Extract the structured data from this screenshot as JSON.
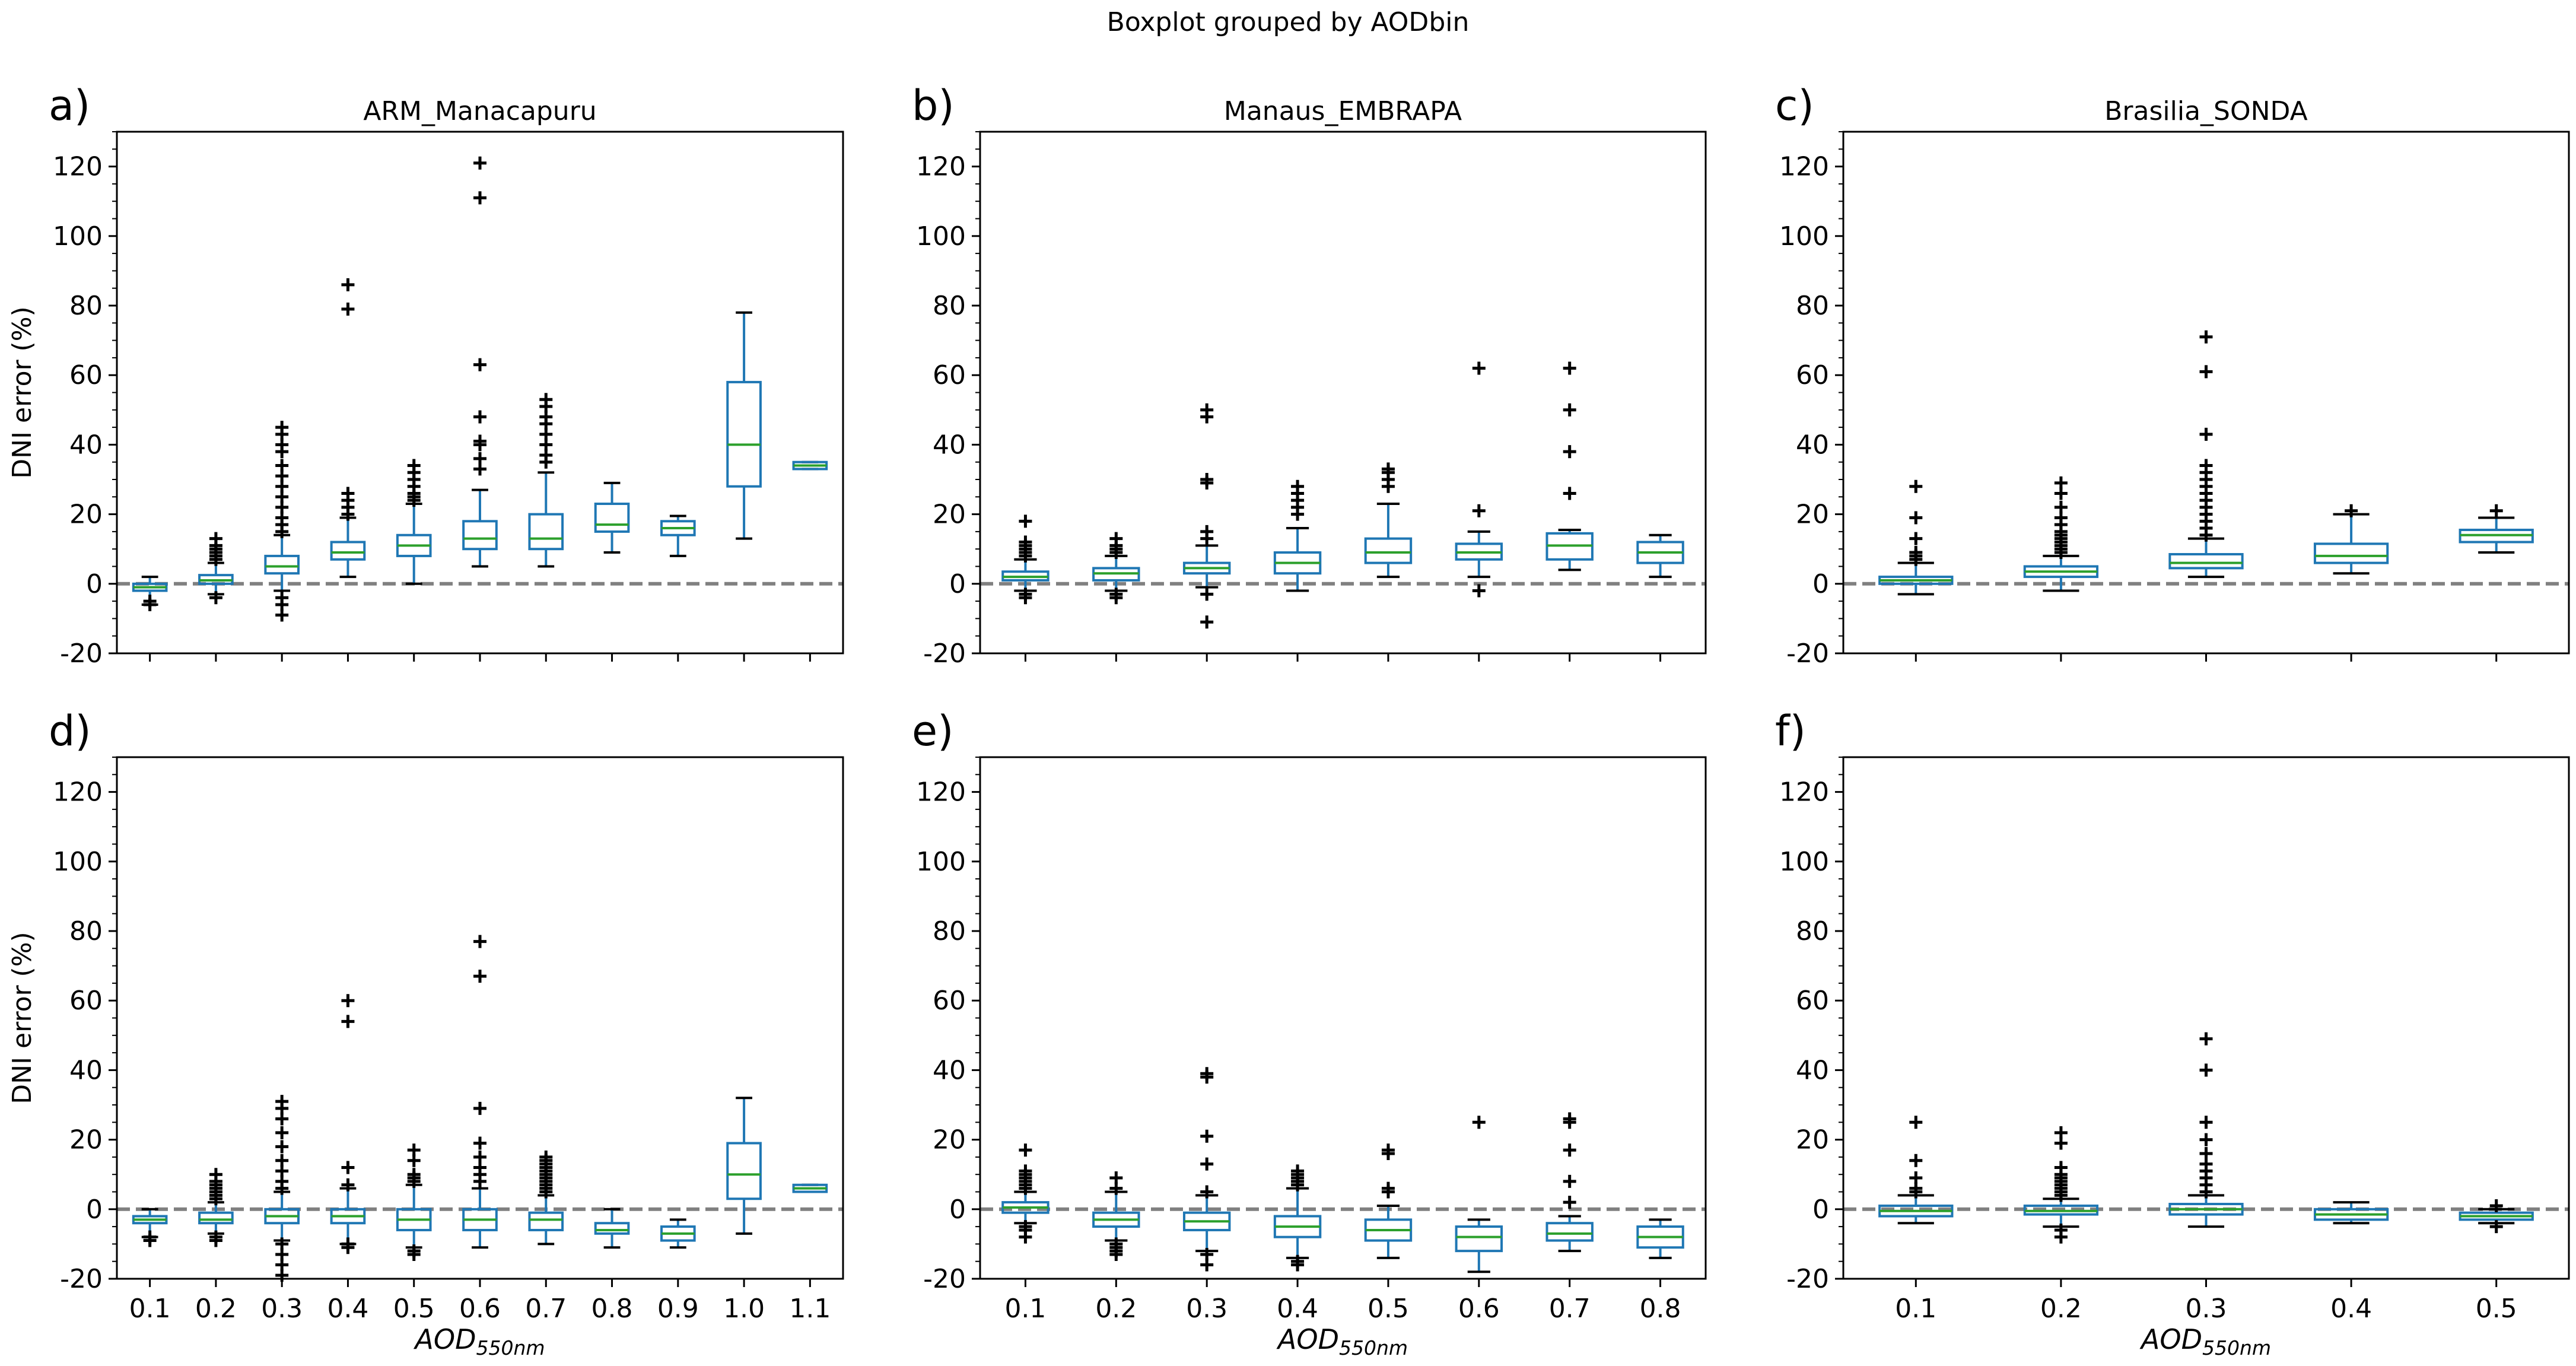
{
  "suptitle": "Boxplot grouped by AODbin",
  "colors": {
    "box": "#1f77b4",
    "median": "#2ca02c",
    "zero_line": "#808080",
    "axis": "#000000",
    "flier": "#000000"
  },
  "chart_data": [
    {
      "type": "boxplot",
      "panel": "a)",
      "title": "ARM_Manacapuru",
      "xlabel": "",
      "ylabel": "DNI error (%)",
      "ylim": [
        -20,
        130
      ],
      "yticks": [
        -20,
        0,
        20,
        40,
        60,
        80,
        100,
        120
      ],
      "zero_line": 0,
      "categories": [
        "0.1",
        "0.2",
        "0.3",
        "0.4",
        "0.5",
        "0.6",
        "0.7",
        "0.8",
        "0.9",
        "1.0",
        "1.1"
      ],
      "boxes": [
        {
          "q1": -2,
          "median": -1,
          "q3": 0,
          "whislo": -6,
          "whishi": 2,
          "fliers": [
            -5,
            -6
          ]
        },
        {
          "q1": 0,
          "median": 1,
          "q3": 2.5,
          "whislo": -3,
          "whishi": 6,
          "fliers": [
            7,
            8,
            9,
            10,
            11,
            13,
            -4
          ]
        },
        {
          "q1": 3,
          "median": 5,
          "q3": 8,
          "whislo": -2,
          "whishi": 14,
          "fliers": [
            15,
            17,
            19,
            22,
            25,
            28,
            31,
            34,
            38,
            40,
            43,
            45,
            -4,
            -6,
            -9
          ]
        },
        {
          "q1": 7,
          "median": 9,
          "q3": 12,
          "whislo": 2,
          "whishi": 19,
          "fliers": [
            20,
            22,
            24,
            26,
            79,
            86
          ]
        },
        {
          "q1": 8,
          "median": 11,
          "q3": 14,
          "whislo": 0,
          "whishi": 23,
          "fliers": [
            24,
            25,
            26,
            28,
            30,
            32,
            34
          ]
        },
        {
          "q1": 10,
          "median": 13,
          "q3": 18,
          "whislo": 5,
          "whishi": 27,
          "fliers": [
            33,
            36,
            40,
            41,
            48,
            63,
            111,
            121
          ]
        },
        {
          "q1": 10,
          "median": 13,
          "q3": 20,
          "whislo": 5,
          "whishi": 32,
          "fliers": [
            35,
            37,
            40,
            43,
            46,
            48,
            51,
            53
          ]
        },
        {
          "q1": 15,
          "median": 17,
          "q3": 23,
          "whislo": 9,
          "whishi": 29,
          "fliers": []
        },
        {
          "q1": 14,
          "median": 16,
          "q3": 18,
          "whislo": 8,
          "whishi": 19.5,
          "fliers": []
        },
        {
          "q1": 28,
          "median": 40,
          "q3": 58,
          "whislo": 13,
          "whishi": 78,
          "fliers": []
        },
        {
          "q1": 33,
          "median": 34,
          "q3": 35,
          "whislo": 33,
          "whishi": 35,
          "fliers": []
        }
      ]
    },
    {
      "type": "boxplot",
      "panel": "b)",
      "title": "Manaus_EMBRAPA",
      "xlabel": "",
      "ylabel": "",
      "ylim": [
        -20,
        130
      ],
      "yticks": [
        -20,
        0,
        20,
        40,
        60,
        80,
        100,
        120
      ],
      "zero_line": 0,
      "categories": [
        "0.1",
        "0.2",
        "0.3",
        "0.4",
        "0.5",
        "0.6",
        "0.7",
        "0.8"
      ],
      "boxes": [
        {
          "q1": 1,
          "median": 2,
          "q3": 3.5,
          "whislo": -2,
          "whishi": 7,
          "fliers": [
            8,
            9,
            10,
            11,
            12,
            18,
            -3,
            -4
          ]
        },
        {
          "q1": 1,
          "median": 3,
          "q3": 4.5,
          "whislo": -2,
          "whishi": 8,
          "fliers": [
            9,
            10,
            11,
            13,
            -3,
            -4
          ]
        },
        {
          "q1": 3,
          "median": 4.5,
          "q3": 6,
          "whislo": -1,
          "whishi": 11,
          "fliers": [
            13,
            15,
            29,
            30,
            48,
            50,
            -3,
            -11
          ]
        },
        {
          "q1": 3,
          "median": 6,
          "q3": 9,
          "whislo": -2,
          "whishi": 16,
          "fliers": [
            20,
            22,
            24,
            26,
            28
          ]
        },
        {
          "q1": 6,
          "median": 9,
          "q3": 13,
          "whislo": 2,
          "whishi": 23,
          "fliers": [
            28,
            30,
            32,
            33
          ]
        },
        {
          "q1": 7,
          "median": 9,
          "q3": 11.5,
          "whislo": 2,
          "whishi": 15,
          "fliers": [
            -2,
            21,
            62
          ]
        },
        {
          "q1": 7,
          "median": 11,
          "q3": 14.5,
          "whislo": 4,
          "whishi": 15.5,
          "fliers": [
            26,
            38,
            50,
            62
          ]
        },
        {
          "q1": 6,
          "median": 9,
          "q3": 12,
          "whislo": 2,
          "whishi": 14,
          "fliers": []
        }
      ]
    },
    {
      "type": "boxplot",
      "panel": "c)",
      "title": "Brasilia_SONDA",
      "xlabel": "",
      "ylabel": "",
      "ylim": [
        -20,
        130
      ],
      "yticks": [
        -20,
        0,
        20,
        40,
        60,
        80,
        100,
        120
      ],
      "zero_line": 0,
      "categories": [
        "0.1",
        "0.2",
        "0.3",
        "0.4",
        "0.5"
      ],
      "boxes": [
        {
          "q1": 0,
          "median": 1,
          "q3": 2,
          "whislo": -3,
          "whishi": 6,
          "fliers": [
            7,
            8,
            9,
            13,
            19,
            28
          ]
        },
        {
          "q1": 2,
          "median": 3.5,
          "q3": 5,
          "whislo": -2,
          "whishi": 8,
          "fliers": [
            9,
            10,
            11,
            12,
            13,
            14,
            15,
            17,
            19,
            22,
            26,
            29
          ]
        },
        {
          "q1": 4.5,
          "median": 6,
          "q3": 8.5,
          "whislo": 2,
          "whishi": 13,
          "fliers": [
            14,
            16,
            18,
            20,
            22,
            24,
            26,
            28,
            30,
            32,
            34,
            43,
            61,
            71
          ]
        },
        {
          "q1": 6,
          "median": 8,
          "q3": 11.5,
          "whislo": 3,
          "whishi": 20,
          "fliers": [
            21
          ]
        },
        {
          "q1": 12,
          "median": 14,
          "q3": 15.5,
          "whislo": 9,
          "whishi": 19,
          "fliers": [
            21
          ]
        }
      ]
    },
    {
      "type": "boxplot",
      "panel": "d)",
      "title": "",
      "xlabel": "AOD550nm",
      "ylabel": "DNI error (%)",
      "ylim": [
        -20,
        130
      ],
      "yticks": [
        -20,
        0,
        20,
        40,
        60,
        80,
        100,
        120
      ],
      "zero_line": 0,
      "categories": [
        "0.1",
        "0.2",
        "0.3",
        "0.4",
        "0.5",
        "0.6",
        "0.7",
        "0.8",
        "0.9",
        "1.0",
        "1.1"
      ],
      "boxes": [
        {
          "q1": -4,
          "median": -3,
          "q3": -2,
          "whislo": -8,
          "whishi": 0,
          "fliers": [
            -8,
            -9
          ]
        },
        {
          "q1": -4,
          "median": -3,
          "q3": -1,
          "whislo": -7,
          "whishi": 2,
          "fliers": [
            3,
            4,
            5,
            6,
            7,
            8,
            10,
            -8,
            -9
          ]
        },
        {
          "q1": -4,
          "median": -2,
          "q3": 0,
          "whislo": -9,
          "whishi": 5,
          "fliers": [
            6,
            8,
            11,
            14,
            18,
            22,
            26,
            29,
            31,
            -10,
            -13,
            -16,
            -19
          ]
        },
        {
          "q1": -4,
          "median": -2,
          "q3": 0,
          "whislo": -10,
          "whishi": 6,
          "fliers": [
            7,
            12,
            54,
            60,
            -10,
            -11
          ]
        },
        {
          "q1": -6,
          "median": -3,
          "q3": 0,
          "whislo": -11,
          "whishi": 7,
          "fliers": [
            8,
            9,
            10,
            14,
            17,
            -12,
            -13
          ]
        },
        {
          "q1": -6,
          "median": -3,
          "q3": 0,
          "whislo": -11,
          "whishi": 6,
          "fliers": [
            8,
            10,
            12,
            15,
            19,
            29,
            67,
            77
          ]
        },
        {
          "q1": -6,
          "median": -3,
          "q3": -1,
          "whislo": -10,
          "whishi": 4,
          "fliers": [
            5,
            6,
            7,
            8,
            9,
            10,
            11,
            12,
            13,
            14,
            15
          ]
        },
        {
          "q1": -7,
          "median": -6,
          "q3": -4,
          "whislo": -11,
          "whishi": 0,
          "fliers": []
        },
        {
          "q1": -9,
          "median": -7,
          "q3": -5,
          "whislo": -11,
          "whishi": -3,
          "fliers": []
        },
        {
          "q1": 3,
          "median": 10,
          "q3": 19,
          "whislo": -7,
          "whishi": 32,
          "fliers": []
        },
        {
          "q1": 5,
          "median": 6,
          "q3": 7,
          "whislo": 5,
          "whishi": 7,
          "fliers": []
        }
      ]
    },
    {
      "type": "boxplot",
      "panel": "e)",
      "title": "",
      "xlabel": "AOD550nm",
      "ylabel": "",
      "ylim": [
        -20,
        130
      ],
      "yticks": [
        -20,
        0,
        20,
        40,
        60,
        80,
        100,
        120
      ],
      "zero_line": 0,
      "categories": [
        "0.1",
        "0.2",
        "0.3",
        "0.4",
        "0.5",
        "0.6",
        "0.7",
        "0.8"
      ],
      "boxes": [
        {
          "q1": -1,
          "median": 0.5,
          "q3": 2,
          "whislo": -4,
          "whishi": 5,
          "fliers": [
            6,
            7,
            8,
            9,
            10,
            11,
            17,
            -5,
            -6,
            -8
          ]
        },
        {
          "q1": -5,
          "median": -3,
          "q3": -1,
          "whislo": -9,
          "whishi": 5,
          "fliers": [
            6,
            9,
            -10,
            -11,
            -12,
            -13
          ]
        },
        {
          "q1": -6,
          "median": -3.5,
          "q3": -1,
          "whislo": -12,
          "whishi": 4,
          "fliers": [
            5,
            13,
            21,
            38,
            39,
            -13,
            -16
          ]
        },
        {
          "q1": -8,
          "median": -5,
          "q3": -2,
          "whislo": -14,
          "whishi": 6,
          "fliers": [
            7,
            8,
            9,
            10,
            11,
            -15,
            -16
          ]
        },
        {
          "q1": -9,
          "median": -6,
          "q3": -3,
          "whislo": -14,
          "whishi": 1,
          "fliers": [
            5,
            6,
            16,
            17
          ]
        },
        {
          "q1": -12,
          "median": -8,
          "q3": -5,
          "whislo": -18,
          "whishi": -3,
          "fliers": [
            25
          ]
        },
        {
          "q1": -9,
          "median": -7,
          "q3": -4,
          "whislo": -12,
          "whishi": -2,
          "fliers": [
            2,
            8,
            17,
            25,
            26
          ]
        },
        {
          "q1": -11,
          "median": -8,
          "q3": -5,
          "whislo": -14,
          "whishi": -3,
          "fliers": []
        }
      ]
    },
    {
      "type": "boxplot",
      "panel": "f)",
      "title": "",
      "xlabel": "AOD550nm",
      "ylabel": "",
      "ylim": [
        -20,
        130
      ],
      "yticks": [
        -20,
        0,
        20,
        40,
        60,
        80,
        100,
        120
      ],
      "zero_line": 0,
      "categories": [
        "0.1",
        "0.2",
        "0.3",
        "0.4",
        "0.5"
      ],
      "boxes": [
        {
          "q1": -2,
          "median": -0.5,
          "q3": 1,
          "whislo": -4,
          "whishi": 4,
          "fliers": [
            5,
            6,
            9,
            14,
            25
          ]
        },
        {
          "q1": -1.5,
          "median": -0.5,
          "q3": 1,
          "whislo": -5,
          "whishi": 3,
          "fliers": [
            4,
            5,
            6,
            7,
            8,
            9,
            10,
            12,
            19,
            22,
            -6,
            -8
          ]
        },
        {
          "q1": -1.5,
          "median": 0,
          "q3": 1.5,
          "whislo": -5,
          "whishi": 4,
          "fliers": [
            5,
            7,
            9,
            11,
            13,
            16,
            20,
            25,
            40,
            49
          ]
        },
        {
          "q1": -3,
          "median": -1.5,
          "q3": 0,
          "whislo": -4,
          "whishi": 2,
          "fliers": []
        },
        {
          "q1": -3,
          "median": -2,
          "q3": -1,
          "whislo": -4,
          "whishi": 0,
          "fliers": [
            1,
            -5
          ]
        }
      ]
    }
  ]
}
